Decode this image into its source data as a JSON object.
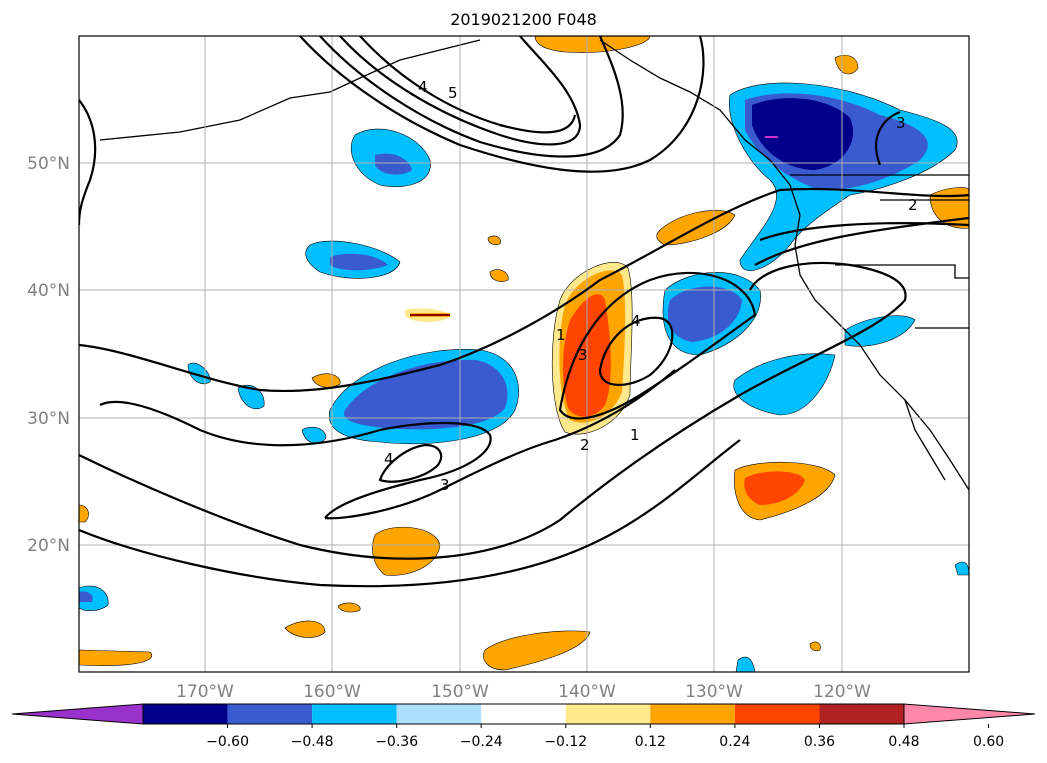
{
  "title": "2019021200 F048",
  "map": {
    "lat_labels": [
      "50°N",
      "40°N",
      "30°N",
      "20°N"
    ],
    "lon_labels": [
      "170°W",
      "160°W",
      "150°W",
      "140°W",
      "130°W",
      "120°W"
    ],
    "label_color": "#808080"
  },
  "contours": {
    "labels": [
      "5",
      "4",
      "3",
      "2",
      "1",
      "3",
      "4",
      "1",
      "2",
      "3",
      "4"
    ]
  },
  "colorbar": {
    "ticks": [
      "−0.60",
      "−0.48",
      "−0.36",
      "−0.24",
      "−0.12",
      "0.12",
      "0.24",
      "0.36",
      "0.48",
      "0.60"
    ],
    "colors": [
      "#9932CC",
      "#00008B",
      "#3A5BD0",
      "#00BFFF",
      "#ADDFFF",
      "#FFFFFF",
      "#FFE98C",
      "#FFA500",
      "#FF4500",
      "#B22222",
      "#FF88AA"
    ]
  }
}
